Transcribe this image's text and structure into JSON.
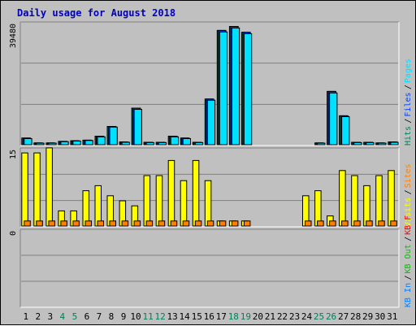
{
  "chart_data": {
    "type": "bar",
    "title": "Daily usage for August 2018",
    "categories": [
      "1",
      "2",
      "3",
      "4",
      "5",
      "6",
      "7",
      "8",
      "9",
      "10",
      "11",
      "12",
      "13",
      "14",
      "15",
      "16",
      "17",
      "18",
      "19",
      "20",
      "21",
      "22",
      "23",
      "24",
      "25",
      "26",
      "27",
      "28",
      "29",
      "30",
      "31"
    ],
    "weekend_days": [
      "4",
      "5",
      "11",
      "12",
      "18",
      "19",
      "25",
      "26"
    ],
    "panels": [
      {
        "name": "hits-files-pages",
        "ymax_label": "39480",
        "ymax": 39480,
        "legend": [
          {
            "label": "Hits",
            "color": "#00805c"
          },
          {
            "label": "Files",
            "color": "#0040ff"
          },
          {
            "label": "Pages",
            "color": "#00e0ff"
          }
        ],
        "series": [
          {
            "name": "Hits",
            "color": "#00805c",
            "values": [
              2200,
              600,
              600,
              1100,
              1300,
              1500,
              2800,
              6000,
              900,
              12000,
              800,
              800,
              2800,
              2200,
              800,
              15000,
              37500,
              38800,
              36900,
              0,
              0,
              0,
              0,
              0,
              600,
              17500,
              9500,
              800,
              800,
              600,
              900
            ]
          },
          {
            "name": "Files",
            "color": "#0040ff",
            "values": [
              2200,
              600,
              600,
              1100,
              1300,
              1500,
              2800,
              6000,
              900,
              12000,
              800,
              800,
              2800,
              2200,
              800,
              15000,
              37500,
              38800,
              36900,
              0,
              0,
              0,
              0,
              0,
              600,
              17500,
              9500,
              800,
              800,
              600,
              900
            ]
          },
          {
            "name": "Pages",
            "color": "#00e0ff",
            "values": [
              2000,
              500,
              500,
              1000,
              1200,
              1400,
              2600,
              5800,
              800,
              11600,
              700,
              700,
              2600,
              2000,
              700,
              14600,
              37000,
              38300,
              36400,
              0,
              0,
              0,
              0,
              0,
              500,
              17000,
              9200,
              700,
              700,
              500,
              800
            ]
          }
        ]
      },
      {
        "name": "visits-sites",
        "ymax_label": "15",
        "ymax": 15,
        "legend": [
          {
            "label": "Visits",
            "color": "#ffff00"
          },
          {
            "label": "Sites",
            "color": "#ff8000"
          }
        ],
        "series": [
          {
            "name": "Visits",
            "color": "#ffff00",
            "values": [
              14.5,
              14.5,
              15.5,
              3,
              3,
              7,
              8,
              6,
              5,
              4,
              10,
              10,
              13,
              9,
              13,
              9,
              1,
              1,
              1,
              0,
              0,
              0,
              0,
              6,
              7,
              2,
              11,
              10,
              8,
              10,
              11
            ]
          },
          {
            "name": "Sites",
            "color": "#ff8000",
            "values": [
              1,
              1,
              1,
              1,
              1,
              1,
              1,
              1,
              1,
              1,
              1,
              1,
              1,
              1,
              1,
              1,
              1,
              1,
              1,
              0,
              0,
              0,
              0,
              1,
              1,
              1,
              1,
              1,
              1,
              1,
              1
            ]
          }
        ]
      },
      {
        "name": "kb",
        "ymax_label": "0",
        "ymax": 0,
        "legend": [
          {
            "label": "KB In",
            "color": "#0080ff"
          },
          {
            "label": "KB Out",
            "color": "#00c000"
          },
          {
            "label": "KB F",
            "color": "#ff0000"
          }
        ],
        "series": []
      }
    ]
  },
  "colors": {
    "background": "#c0c0c0",
    "title": "#0000c0",
    "weekday_label": "#000000",
    "weekend_label": "#00805c",
    "grid": "#808080"
  }
}
